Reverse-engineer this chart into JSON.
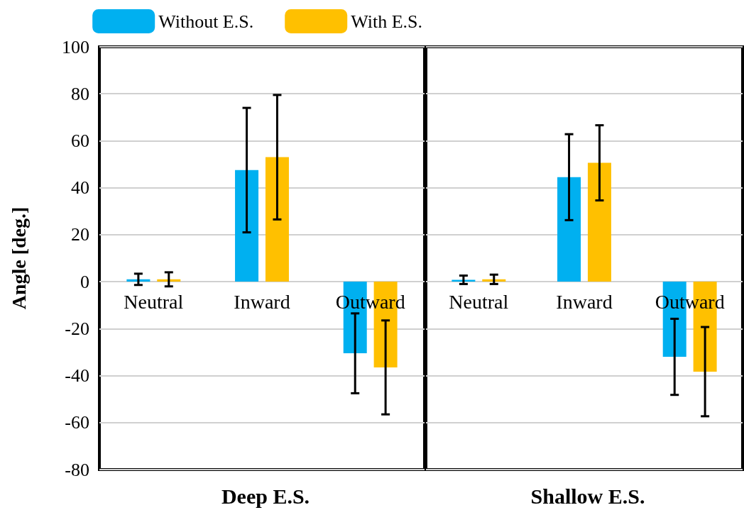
{
  "chart_data": [
    {
      "type": "bar",
      "xlabel": "Deep E.S.",
      "ylabel": "Angle [deg.]",
      "categories": [
        "Neutral",
        "Inward",
        "Outward"
      ],
      "series": [
        {
          "name": "Without E.S.",
          "color": "#00b0f0",
          "values": [
            1,
            47.5,
            -30.5
          ],
          "errors": [
            2.4,
            26.5,
            17
          ]
        },
        {
          "name": "With E.S.",
          "color": "#ffc000",
          "values": [
            1,
            53,
            -36.5
          ],
          "errors": [
            3,
            26.5,
            20
          ]
        }
      ],
      "ylim": [
        -80,
        100
      ],
      "yticks": [
        -80,
        -60,
        -40,
        -20,
        0,
        20,
        40,
        60,
        80,
        100
      ],
      "grid": "y",
      "legend": "top"
    },
    {
      "type": "bar",
      "xlabel": "Shallow E.S.",
      "categories": [
        "Neutral",
        "Inward",
        "Outward"
      ],
      "series": [
        {
          "color": "#00b0f0",
          "values": [
            0.8,
            44.5,
            -32
          ],
          "errors": [
            1.8,
            18.3,
            16.2
          ]
        },
        {
          "color": "#ffc000",
          "values": [
            1,
            50.6,
            -38.3
          ],
          "errors": [
            2,
            16,
            19
          ]
        }
      ],
      "ylim": [
        -80,
        100
      ],
      "yticks": [
        -80,
        -60,
        -40,
        -20,
        0,
        20,
        40,
        60,
        80,
        100
      ],
      "grid": "y",
      "tick_labels": "x"
    }
  ]
}
